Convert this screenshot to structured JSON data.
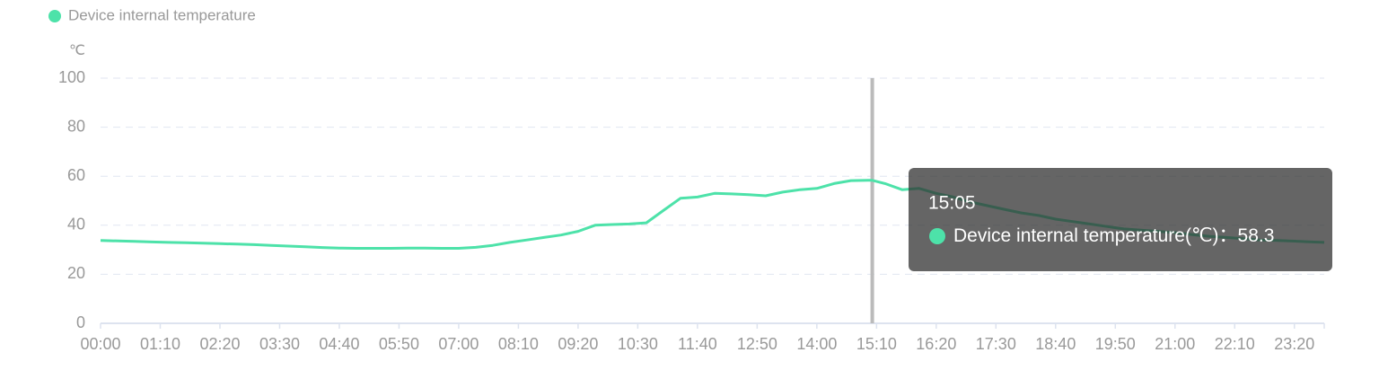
{
  "chart_data": {
    "type": "line",
    "y_label": "℃",
    "series": [
      {
        "name": "Device internal temperature",
        "color": "#4de2a9",
        "values": [
          33.8,
          33.6,
          33.4,
          33.2,
          33.0,
          32.9,
          32.7,
          32.5,
          32.3,
          32.1,
          31.8,
          31.5,
          31.2,
          30.9,
          30.7,
          30.6,
          30.6,
          30.6,
          30.7,
          30.7,
          30.6,
          30.6,
          31.0,
          31.8,
          33.0,
          34.0,
          35.0,
          36.0,
          37.5,
          40.0,
          40.3,
          40.5,
          41.0,
          46.0,
          51.0,
          51.5,
          53.0,
          52.8,
          52.5,
          52.0,
          53.5,
          54.5,
          55.0,
          57.0,
          58.2,
          58.3,
          58.3,
          57.0,
          54.5,
          55.0,
          53.0,
          51.5,
          49.5,
          48.0,
          46.5,
          45.0,
          44.0,
          42.5,
          41.5,
          40.5,
          39.5,
          38.5,
          38.0,
          37.5,
          37.0,
          36.2,
          35.5,
          35.0,
          34.5,
          34.0,
          33.8,
          33.5,
          33.2,
          33.0
        ]
      }
    ],
    "x": [
      0,
      20,
      40,
      60,
      80,
      100,
      120,
      140,
      160,
      180,
      200,
      220,
      240,
      260,
      280,
      300,
      320,
      340,
      360,
      380,
      400,
      420,
      440,
      460,
      480,
      500,
      520,
      540,
      560,
      580,
      600,
      620,
      640,
      660,
      680,
      700,
      720,
      740,
      760,
      780,
      800,
      820,
      840,
      860,
      880,
      900,
      905,
      920,
      940,
      960,
      980,
      1000,
      1020,
      1040,
      1060,
      1080,
      1100,
      1120,
      1140,
      1160,
      1180,
      1200,
      1220,
      1240,
      1260,
      1280,
      1300,
      1320,
      1340,
      1360,
      1380,
      1400,
      1420,
      1435
    ],
    "xlim": [
      0,
      1435
    ],
    "xticks": [
      {
        "value": 0,
        "label": "00:00"
      },
      {
        "value": 70,
        "label": "01:10"
      },
      {
        "value": 140,
        "label": "02:20"
      },
      {
        "value": 210,
        "label": "03:30"
      },
      {
        "value": 280,
        "label": "04:40"
      },
      {
        "value": 350,
        "label": "05:50"
      },
      {
        "value": 420,
        "label": "07:00"
      },
      {
        "value": 490,
        "label": "08:10"
      },
      {
        "value": 560,
        "label": "09:20"
      },
      {
        "value": 630,
        "label": "10:30"
      },
      {
        "value": 700,
        "label": "11:40"
      },
      {
        "value": 770,
        "label": "12:50"
      },
      {
        "value": 840,
        "label": "14:00"
      },
      {
        "value": 910,
        "label": "15:10"
      },
      {
        "value": 980,
        "label": "16:20"
      },
      {
        "value": 1050,
        "label": "17:30"
      },
      {
        "value": 1120,
        "label": "18:40"
      },
      {
        "value": 1190,
        "label": "19:50"
      },
      {
        "value": 1260,
        "label": "21:00"
      },
      {
        "value": 1330,
        "label": "22:10"
      },
      {
        "value": 1400,
        "label": "23:20"
      }
    ],
    "ylim": [
      0,
      100
    ],
    "yticks": [
      0,
      20,
      40,
      60,
      80,
      100
    ],
    "grid": true,
    "tooltip": {
      "title": "15:05",
      "x": 905,
      "label": "Device internal temperature(℃)：",
      "value": 58.3
    }
  }
}
